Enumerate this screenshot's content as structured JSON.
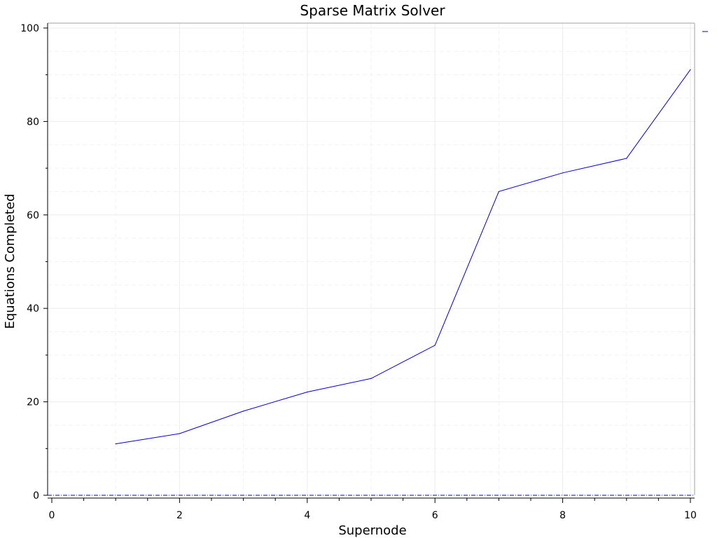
{
  "chart_data": {
    "type": "line",
    "title": "Sparse Matrix Solver",
    "xlabel": "Supernode",
    "ylabel": "Equations Completed",
    "xlim": [
      0,
      10
    ],
    "ylim": [
      0,
      100
    ],
    "x_ticks": [
      0,
      2,
      4,
      6,
      8,
      10
    ],
    "y_ticks": [
      0,
      20,
      40,
      60,
      80,
      100
    ],
    "x_tick_labels": [
      "0",
      "2",
      "4",
      "6",
      "8",
      "10"
    ],
    "y_tick_labels": [
      "0",
      "20",
      "40",
      "60",
      "80",
      "100"
    ],
    "grid": true,
    "legend": "top-right",
    "series": [
      {
        "color": "#0000cc",
        "x": [
          1,
          2,
          3,
          4,
          5,
          6,
          7,
          8,
          9,
          10
        ],
        "values": [
          11,
          13.2,
          18,
          22.1,
          25,
          32.1,
          65,
          69,
          72.1,
          91.1
        ]
      }
    ],
    "baseline": {
      "y": 0,
      "style": "dash-dot",
      "color": "#0000cc"
    }
  }
}
